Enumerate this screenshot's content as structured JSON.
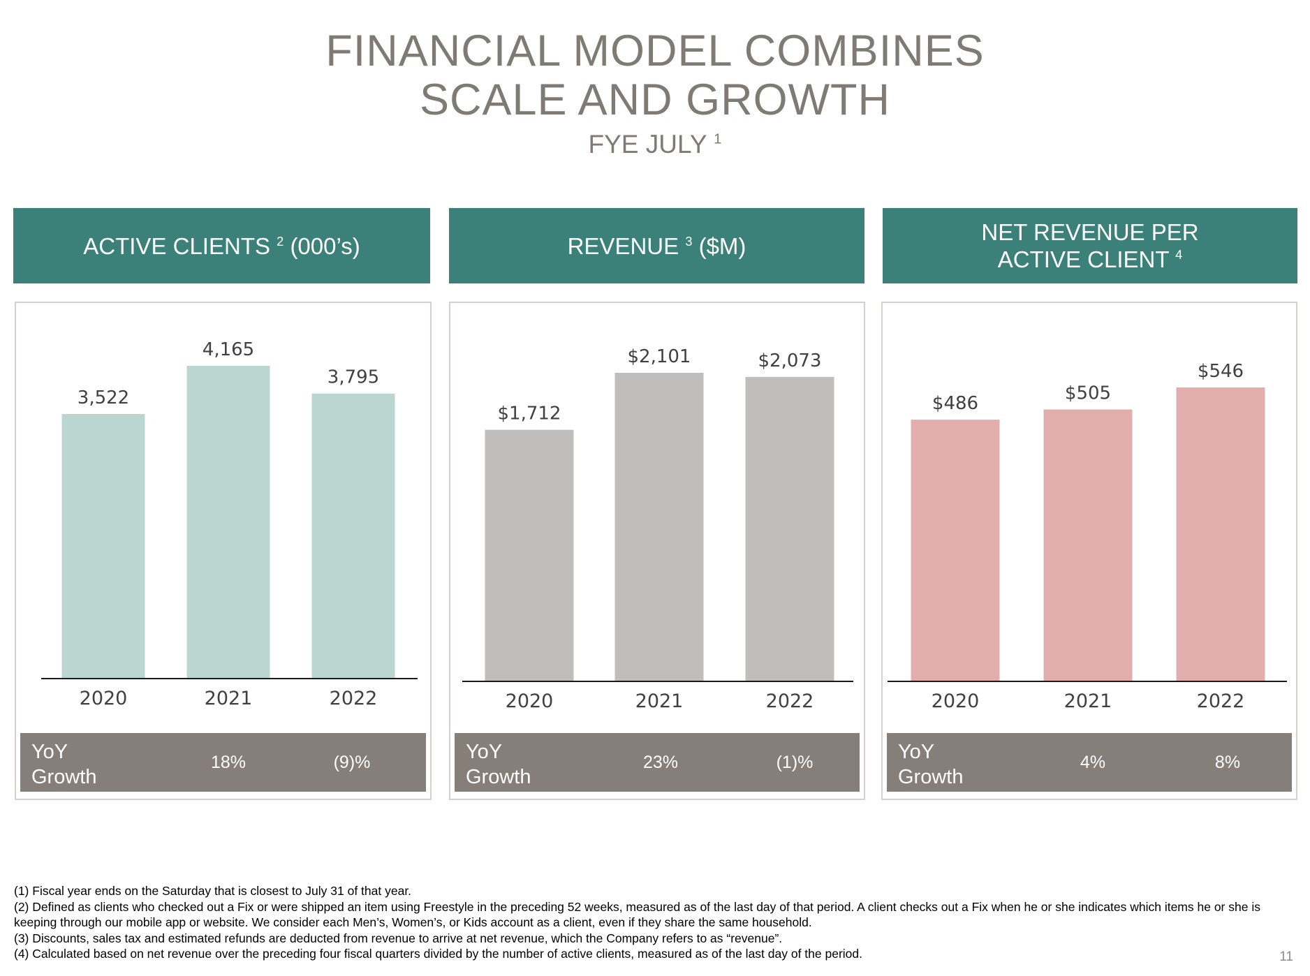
{
  "title": {
    "line1": "FINANCIAL MODEL COMBINES",
    "line2": "SCALE AND GROWTH",
    "subtitle": "FYE JULY",
    "subtitle_note": "1"
  },
  "panels": [
    {
      "header_text": "ACTIVE CLIENTS",
      "header_note": "2",
      "header_unit": "(000’s)",
      "yoy_label_line1": "YoY",
      "yoy_label_line2": "Growth",
      "yoy_values": [
        "18%",
        "(9)%"
      ]
    },
    {
      "header_text": "REVENUE",
      "header_note": "3",
      "header_unit": "($M)",
      "yoy_label_line1": "YoY",
      "yoy_label_line2": "Growth",
      "yoy_values": [
        "23%",
        "(1)%"
      ]
    },
    {
      "header_line1": "NET REVENUE PER",
      "header_line2": "ACTIVE CLIENT",
      "header_note": "4",
      "yoy_label_line1": "YoY",
      "yoy_label_line2": "Growth",
      "yoy_values": [
        "4%",
        "8%"
      ]
    }
  ],
  "chart_data": [
    {
      "type": "bar",
      "title": "ACTIVE CLIENTS (000’s)",
      "categories": [
        "2020",
        "2021",
        "2022"
      ],
      "values": [
        3522,
        4165,
        3795
      ],
      "data_labels": [
        "3,522",
        "4,165",
        "3,795"
      ],
      "ylim": [
        0,
        4165
      ],
      "grid": false,
      "color": "#bbd6d1"
    },
    {
      "type": "bar",
      "title": "REVENUE ($M)",
      "categories": [
        "2020",
        "2021",
        "2022"
      ],
      "values": [
        1712,
        2101,
        2073
      ],
      "data_labels": [
        "$1,712",
        "$2,101",
        "$2,073"
      ],
      "ylim": [
        0,
        2101
      ],
      "grid": false,
      "color": "#bfbebc"
    },
    {
      "type": "bar",
      "title": "NET REVENUE PER ACTIVE CLIENT",
      "categories": [
        "2020",
        "2021",
        "2022"
      ],
      "values": [
        486,
        505,
        546
      ],
      "data_labels": [
        "$486",
        "$505",
        "$546"
      ],
      "ylim": [
        0,
        546
      ],
      "grid": false,
      "color": "#e2adad"
    }
  ],
  "footnotes": [
    "(1) Fiscal year ends on the Saturday that is closest to July 31 of that year.",
    "(2) Defined as clients who checked out a Fix or were shipped an item using Freestyle in the preceding 52 weeks, measured as of the last day of that period. A client checks out a Fix when he or she indicates which items he or she is keeping through our mobile app or website. We consider each Men’s, Women’s, or Kids account as a client, even if they share the same household.",
    "(3) Discounts, sales tax and estimated refunds are deducted from revenue to arrive at net revenue, which the Company refers to as “revenue”.",
    "(4) Calculated based on net revenue over the preceding four fiscal quarters divided by the number of active clients, measured as of the last day of the period."
  ],
  "page_number": "11"
}
